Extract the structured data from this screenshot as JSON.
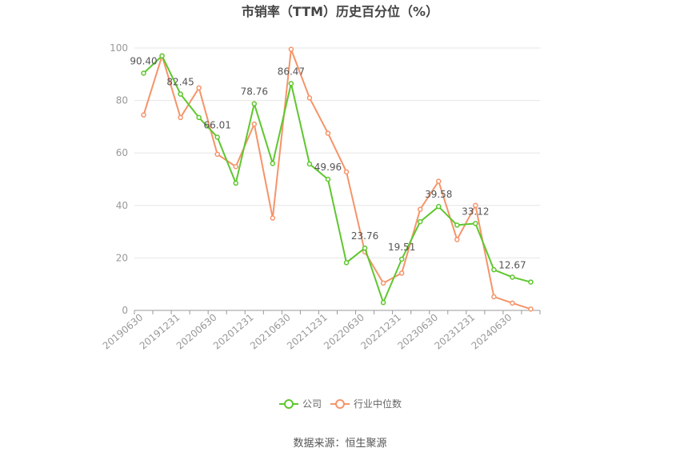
{
  "chart_data": {
    "type": "line",
    "title": "市销率（TTM）历史百分位（%）",
    "x": [
      "20190630",
      "20190930",
      "20191231",
      "20200331",
      "20200630",
      "20200930",
      "20201231",
      "20210331",
      "20210630",
      "20210930",
      "20211231",
      "20220331",
      "20220630",
      "20220930",
      "20221231",
      "20230331",
      "20230630",
      "20230930",
      "20231231",
      "20240331",
      "20240630",
      "20240930"
    ],
    "x_tick_labels": [
      "20190630",
      "20191231",
      "20200630",
      "20201231",
      "20210630",
      "20211231",
      "20220630",
      "20221231",
      "20230630",
      "20231231",
      "20240630"
    ],
    "ylim": [
      0,
      100
    ],
    "y_ticks": [
      0,
      20,
      40,
      60,
      80,
      100
    ],
    "grid": true,
    "legend_position": "bottom",
    "series": [
      {
        "name": "公司",
        "color": "#5ec72e",
        "values": [
          90.4,
          97.0,
          82.45,
          73.5,
          66.01,
          48.5,
          78.76,
          56.0,
          86.47,
          55.8,
          49.96,
          18.2,
          23.76,
          3.0,
          19.51,
          33.8,
          39.58,
          32.5,
          33.12,
          15.5,
          12.67,
          10.8
        ],
        "labels": [
          "90.40",
          "",
          "82.45",
          "",
          "66.01",
          "",
          "78.76",
          "",
          "86.47",
          "",
          "49.96",
          "",
          "23.76",
          "",
          "19.51",
          "",
          "39.58",
          "",
          "33.12",
          "",
          "12.67",
          ""
        ]
      },
      {
        "name": "行业中位数",
        "color": "#f59469",
        "values": [
          74.5,
          97.0,
          73.5,
          84.8,
          59.5,
          54.8,
          71.0,
          35.2,
          99.5,
          81.0,
          67.5,
          52.8,
          22.3,
          10.4,
          14.2,
          38.5,
          49.2,
          27.0,
          40.0,
          5.2,
          2.8,
          0.5
        ]
      }
    ]
  },
  "source_text": "数据来源：恒生聚源"
}
